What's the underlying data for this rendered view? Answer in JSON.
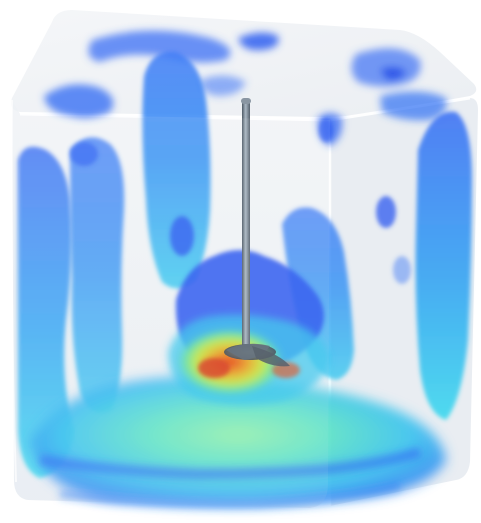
{
  "scene": {
    "subject": "translucent-cube-with-impeller-flow",
    "colors": {
      "background": "#ffffff",
      "cube_glass": "#dfe6ee",
      "deep_blue": "#2c5cf2",
      "mid_blue": "#2d8cf5",
      "cyan": "#36d8f0",
      "green": "#63e6a4",
      "yellow": "#d9ea3d",
      "red": "#e54520",
      "shaft": "#6d7a87"
    }
  }
}
